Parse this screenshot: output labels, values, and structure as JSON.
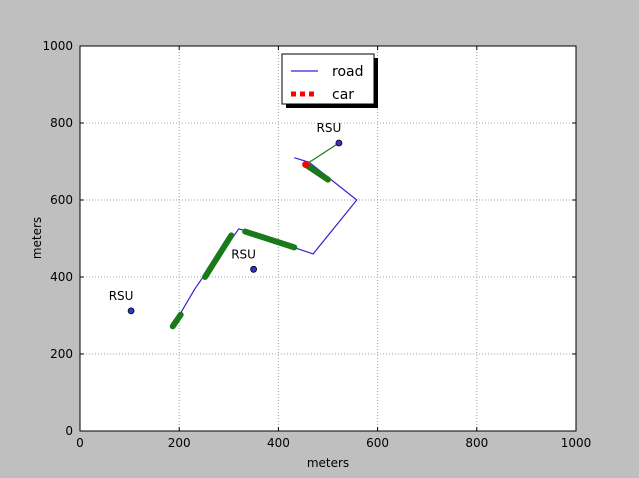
{
  "colors": {
    "figure_bg": "#bfbfbf",
    "axes_bg": "#ffffff",
    "road": "#3a1fd6",
    "car": "#ff0000",
    "coverage": "#1a7a1a",
    "rsu_fill": "#3333cc",
    "grid": "#a0a0a0"
  },
  "chart_data": {
    "type": "line",
    "xlabel": "meters",
    "ylabel": "meters",
    "xlim": [
      0,
      1000
    ],
    "ylim": [
      0,
      1000
    ],
    "xticks": [
      0,
      200,
      400,
      600,
      800,
      1000
    ],
    "yticks": [
      0,
      200,
      400,
      600,
      800,
      1000
    ],
    "grid": true,
    "legend": {
      "placement": "top-center",
      "entries": [
        {
          "label": "road",
          "style": "line",
          "color": "#3a1fd6"
        },
        {
          "label": "car",
          "style": "dotted",
          "color": "#ff0000"
        }
      ]
    },
    "road": {
      "x": [
        187,
        232,
        275,
        313,
        320,
        335,
        400,
        470,
        558,
        462,
        432
      ],
      "y": [
        272,
        370,
        450,
        512,
        525,
        520,
        490,
        460,
        600,
        698,
        710
      ]
    },
    "coverage_segments": [
      {
        "x": [
          187,
          203
        ],
        "y": [
          272,
          302
        ]
      },
      {
        "x": [
          252,
          305
        ],
        "y": [
          400,
          508
        ]
      },
      {
        "x": [
          333,
          432
        ],
        "y": [
          518,
          477
        ]
      },
      {
        "x": [
          455,
          500
        ],
        "y": [
          692,
          653
        ]
      }
    ],
    "car": {
      "x": 455,
      "y": 692
    },
    "rsus": [
      {
        "label": "RSU",
        "x": 103,
        "y": 312
      },
      {
        "label": "RSU",
        "x": 350,
        "y": 420
      },
      {
        "label": "RSU",
        "x": 522,
        "y": 748
      }
    ],
    "active_link": {
      "rsu_index": 2
    }
  }
}
